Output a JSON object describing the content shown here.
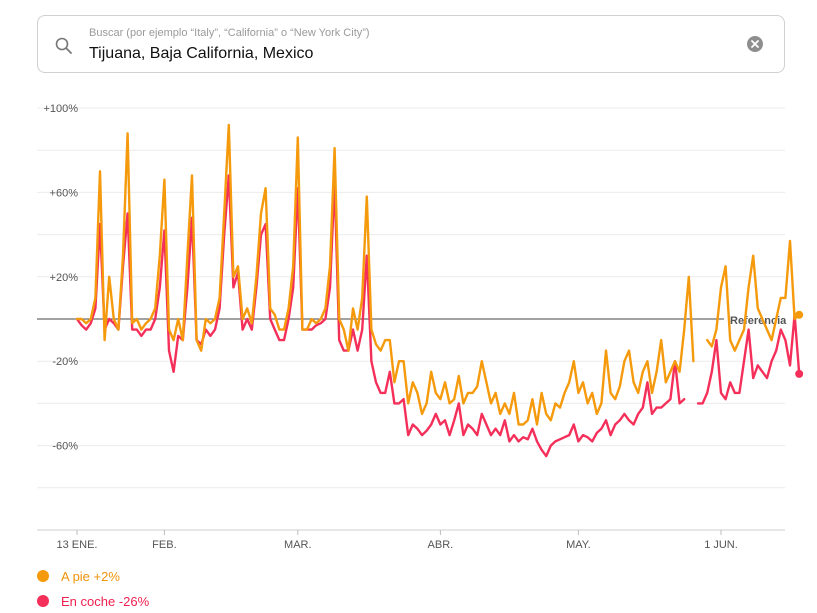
{
  "search": {
    "placeholder": "Buscar (por ejemplo “Italy”, “California” o “New York City”)",
    "value": "Tijuana, Baja California, Mexico",
    "search_icon": "magnifier-icon",
    "clear_icon": "close-circle-icon"
  },
  "colors": {
    "walking": "#f59a0c",
    "driving": "#f4305a",
    "baseline": "#444444",
    "grid": "#ececec",
    "axis_text": "#555555"
  },
  "chart_data": {
    "type": "line",
    "title": "",
    "xlabel": "",
    "ylabel": "",
    "ylim": [
      -100,
      100
    ],
    "y_unit": "% change vs. baseline",
    "y_ticks": [
      {
        "value": 100,
        "label": "+100%"
      },
      {
        "value": 60,
        "label": "+60%"
      },
      {
        "value": 20,
        "label": "+20%"
      },
      {
        "value": -20,
        "label": "-20%"
      },
      {
        "value": -60,
        "label": "-60%"
      }
    ],
    "x_start": "2020-01-13",
    "x_end": "2020-06-01",
    "x_ticks": [
      {
        "date": "2020-01-13",
        "label": "13 ENE."
      },
      {
        "date": "2020-02-01",
        "label": "FEB."
      },
      {
        "date": "2020-03-01",
        "label": "MAR."
      },
      {
        "date": "2020-04-01",
        "label": "ABR."
      },
      {
        "date": "2020-05-01",
        "label": "MAY."
      },
      {
        "date": "2020-06-01",
        "label": "1 JUN."
      }
    ],
    "grid": true,
    "baseline": {
      "value": 0,
      "label": "Referencia"
    },
    "legend_position": "bottom-left",
    "series": [
      {
        "name": "A pie",
        "legend_label": "A pie +2%",
        "color": "#f59a0c",
        "gaps": [
          "2020-05-11",
          "2020-05-12"
        ],
        "values": [
          0,
          0,
          -2,
          0,
          10,
          70,
          -10,
          20,
          0,
          -5,
          30,
          88,
          -2,
          0,
          -5,
          -2,
          0,
          5,
          30,
          66,
          -5,
          -10,
          0,
          -10,
          30,
          68,
          -10,
          -15,
          0,
          -2,
          0,
          10,
          50,
          92,
          20,
          25,
          0,
          5,
          -2,
          20,
          50,
          62,
          5,
          2,
          -5,
          -5,
          5,
          25,
          86,
          -5,
          -5,
          0,
          -2,
          0,
          5,
          25,
          81,
          0,
          -5,
          -15,
          5,
          -5,
          10,
          58,
          -5,
          -12,
          -15,
          -10,
          -10,
          -30,
          -20,
          -20,
          -40,
          -30,
          -35,
          -45,
          -40,
          -25,
          -35,
          -38,
          -30,
          -40,
          -38,
          -27,
          -40,
          -35,
          -35,
          -32,
          -20,
          -30,
          -40,
          -35,
          -45,
          -40,
          -45,
          -35,
          -50,
          -50,
          -48,
          -38,
          -50,
          -35,
          -45,
          -48,
          -40,
          -42,
          -35,
          -30,
          -20,
          -35,
          -30,
          -40,
          -35,
          -45,
          -40,
          -15,
          -35,
          -38,
          -32,
          -20,
          -15,
          -30,
          -35,
          -25,
          -20,
          -35,
          -25,
          -10,
          -30,
          -25,
          -20,
          -25,
          -5,
          20,
          -20,
          null,
          null,
          -10,
          -13,
          -5,
          15,
          25,
          -10,
          -15,
          -10,
          -5,
          15,
          30,
          5,
          0,
          -5,
          -10,
          0,
          10,
          10,
          37,
          0,
          2
        ]
      },
      {
        "name": "En coche",
        "legend_label": "En coche -26%",
        "color": "#f4305a",
        "gaps": [
          "2020-05-11",
          "2020-05-12"
        ],
        "values": [
          0,
          -3,
          -5,
          -2,
          5,
          45,
          -5,
          0,
          -2,
          -5,
          25,
          50,
          -5,
          -5,
          -8,
          -5,
          -5,
          0,
          15,
          42,
          -15,
          -25,
          -8,
          -10,
          15,
          48,
          -10,
          -12,
          -5,
          -8,
          -5,
          5,
          40,
          68,
          15,
          22,
          -5,
          0,
          -5,
          15,
          40,
          45,
          0,
          -5,
          -10,
          -10,
          0,
          15,
          62,
          -5,
          -5,
          -5,
          -3,
          -2,
          0,
          15,
          65,
          -10,
          -15,
          -15,
          -5,
          -15,
          -5,
          30,
          -20,
          -30,
          -35,
          -35,
          -25,
          -40,
          -40,
          -38,
          -55,
          -50,
          -52,
          -55,
          -53,
          -50,
          -45,
          -50,
          -48,
          -55,
          -48,
          -40,
          -55,
          -50,
          -52,
          -55,
          -45,
          -50,
          -55,
          -52,
          -55,
          -48,
          -58,
          -55,
          -58,
          -56,
          -57,
          -52,
          -58,
          -62,
          -65,
          -60,
          -58,
          -57,
          -56,
          -55,
          -50,
          -58,
          -55,
          -56,
          -58,
          -54,
          -52,
          -48,
          -55,
          -50,
          -48,
          -45,
          -48,
          -50,
          -45,
          -42,
          -30,
          -45,
          -42,
          -42,
          -40,
          -38,
          -20,
          -40,
          -38,
          null,
          null,
          -40,
          -40,
          -35,
          -25,
          -10,
          -35,
          -38,
          -30,
          -35,
          -35,
          -20,
          -5,
          -28,
          -22,
          -25,
          -28,
          -20,
          -15,
          -5,
          -10,
          -22,
          2,
          -26
        ]
      }
    ]
  }
}
